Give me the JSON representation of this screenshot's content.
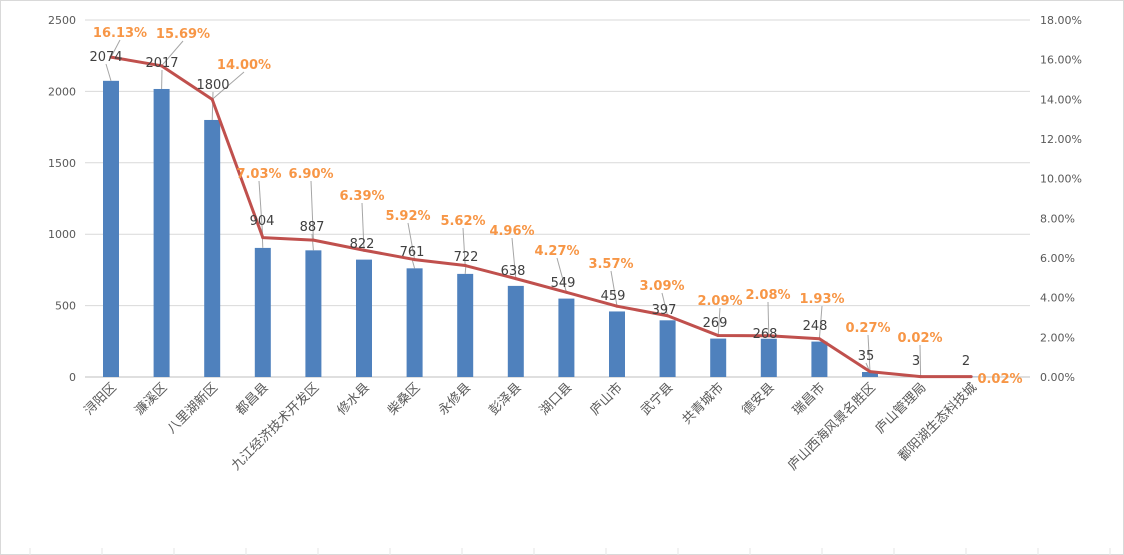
{
  "chart_data": {
    "type": "bar+line",
    "categories": [
      "浔阳区",
      "濂溪区",
      "八里湖新区",
      "都昌县",
      "九江经济技术开发区",
      "修水县",
      "柴桑区",
      "永修县",
      "彭泽县",
      "湖口县",
      "庐山市",
      "武宁县",
      "共青城市",
      "德安县",
      "瑞昌市",
      "庐山西海风景名胜区",
      "庐山管理局",
      "鄱阳湖生态科技城"
    ],
    "series": [
      {
        "name": "count",
        "type": "bar",
        "axis": "left",
        "color": "#4f81bd",
        "values": [
          2074,
          2017,
          1800,
          904,
          887,
          822,
          761,
          722,
          638,
          549,
          459,
          397,
          269,
          268,
          248,
          35,
          3,
          2
        ]
      },
      {
        "name": "share",
        "type": "line",
        "axis": "right",
        "color": "#c0504d",
        "values": [
          16.13,
          15.69,
          14.0,
          7.03,
          6.9,
          6.39,
          5.92,
          5.62,
          4.96,
          4.27,
          3.57,
          3.09,
          2.09,
          2.08,
          1.93,
          0.27,
          0.02,
          0.02
        ],
        "labels": [
          "16.13%",
          "15.69%",
          "14.00%",
          "7.03%",
          "6.90%",
          "6.39%",
          "5.92%",
          "5.62%",
          "4.96%",
          "4.27%",
          "3.57%",
          "3.09%",
          "2.09%",
          "2.08%",
          "1.93%",
          "0.27%",
          "0.02%",
          "0.02%"
        ],
        "label_color": "#f79646"
      }
    ],
    "ylim": [
      0,
      2500
    ],
    "yticks": [
      "0",
      "500",
      "1000",
      "1500",
      "2000",
      "2500"
    ],
    "y2lim": [
      0,
      18
    ],
    "y2ticks": [
      "0.00%",
      "2.00%",
      "4.00%",
      "6.00%",
      "8.00%",
      "10.00%",
      "12.00%",
      "14.00%",
      "16.00%",
      "18.00%"
    ],
    "grid": true,
    "title": "",
    "xlabel": "",
    "ylabel": ""
  }
}
